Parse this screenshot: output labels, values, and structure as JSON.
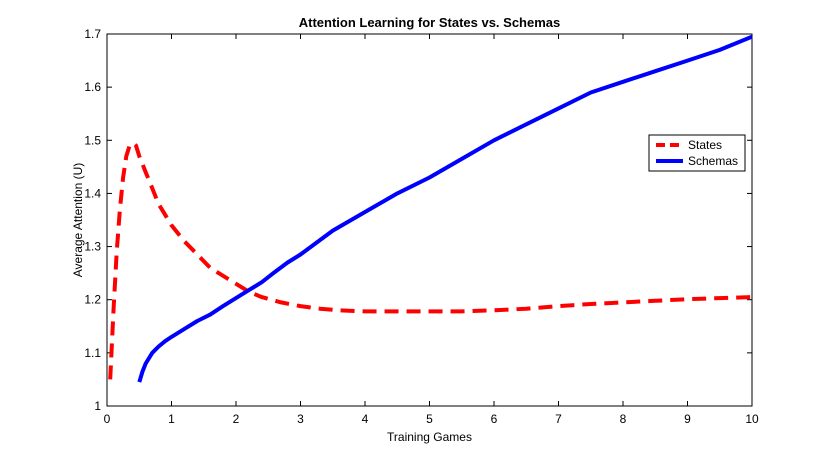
{
  "chart_data": {
    "type": "line",
    "title": "Attention Learning for States vs. Schemas",
    "xlabel": "Training Games",
    "ylabel": "Average Attention (U)",
    "xlim": [
      0,
      10
    ],
    "ylim": [
      1.0,
      1.7
    ],
    "xticks": [
      0,
      1,
      2,
      3,
      4,
      5,
      6,
      7,
      8,
      9,
      10
    ],
    "xtick_labels": [
      "0",
      "1",
      "2",
      "3",
      "4",
      "5",
      "6",
      "7",
      "8",
      "9",
      "10"
    ],
    "yticks": [
      1.0,
      1.1,
      1.2,
      1.3,
      1.4,
      1.5,
      1.6,
      1.7
    ],
    "ytick_labels": [
      "1",
      "1.1",
      "1.2",
      "1.3",
      "1.4",
      "1.5",
      "1.6",
      "1.7"
    ],
    "grid": false,
    "legend_position": "right",
    "series": [
      {
        "name": "States",
        "color": "#ff0000",
        "style": "dashed",
        "x": [
          0.05,
          0.1,
          0.15,
          0.2,
          0.25,
          0.3,
          0.35,
          0.4,
          0.45,
          0.5,
          0.6,
          0.7,
          0.8,
          0.9,
          1.0,
          1.2,
          1.4,
          1.6,
          1.8,
          2.0,
          2.2,
          2.4,
          2.7,
          3.0,
          3.3,
          3.6,
          4.0,
          4.5,
          5.0,
          5.5,
          6.0,
          6.5,
          7.0,
          7.5,
          8.0,
          8.5,
          9.0,
          9.5,
          10.0
        ],
        "y": [
          1.05,
          1.18,
          1.29,
          1.37,
          1.43,
          1.47,
          1.49,
          1.495,
          1.49,
          1.47,
          1.44,
          1.41,
          1.38,
          1.36,
          1.34,
          1.31,
          1.285,
          1.26,
          1.245,
          1.23,
          1.215,
          1.205,
          1.195,
          1.188,
          1.183,
          1.18,
          1.178,
          1.178,
          1.178,
          1.178,
          1.18,
          1.183,
          1.188,
          1.192,
          1.195,
          1.198,
          1.201,
          1.203,
          1.205
        ]
      },
      {
        "name": "Schemas",
        "color": "#0000ff",
        "style": "solid",
        "x": [
          0.5,
          0.55,
          0.6,
          0.7,
          0.8,
          0.9,
          1.0,
          1.2,
          1.4,
          1.6,
          1.8,
          2.0,
          2.2,
          2.4,
          2.6,
          2.8,
          3.0,
          3.5,
          4.0,
          4.5,
          5.0,
          5.5,
          6.0,
          6.5,
          7.0,
          7.5,
          8.0,
          8.5,
          9.0,
          9.5,
          10.0
        ],
        "y": [
          1.045,
          1.065,
          1.08,
          1.1,
          1.112,
          1.122,
          1.13,
          1.145,
          1.16,
          1.172,
          1.188,
          1.203,
          1.218,
          1.233,
          1.252,
          1.27,
          1.285,
          1.33,
          1.365,
          1.4,
          1.43,
          1.465,
          1.5,
          1.53,
          1.56,
          1.59,
          1.61,
          1.63,
          1.65,
          1.67,
          1.695
        ]
      }
    ]
  }
}
